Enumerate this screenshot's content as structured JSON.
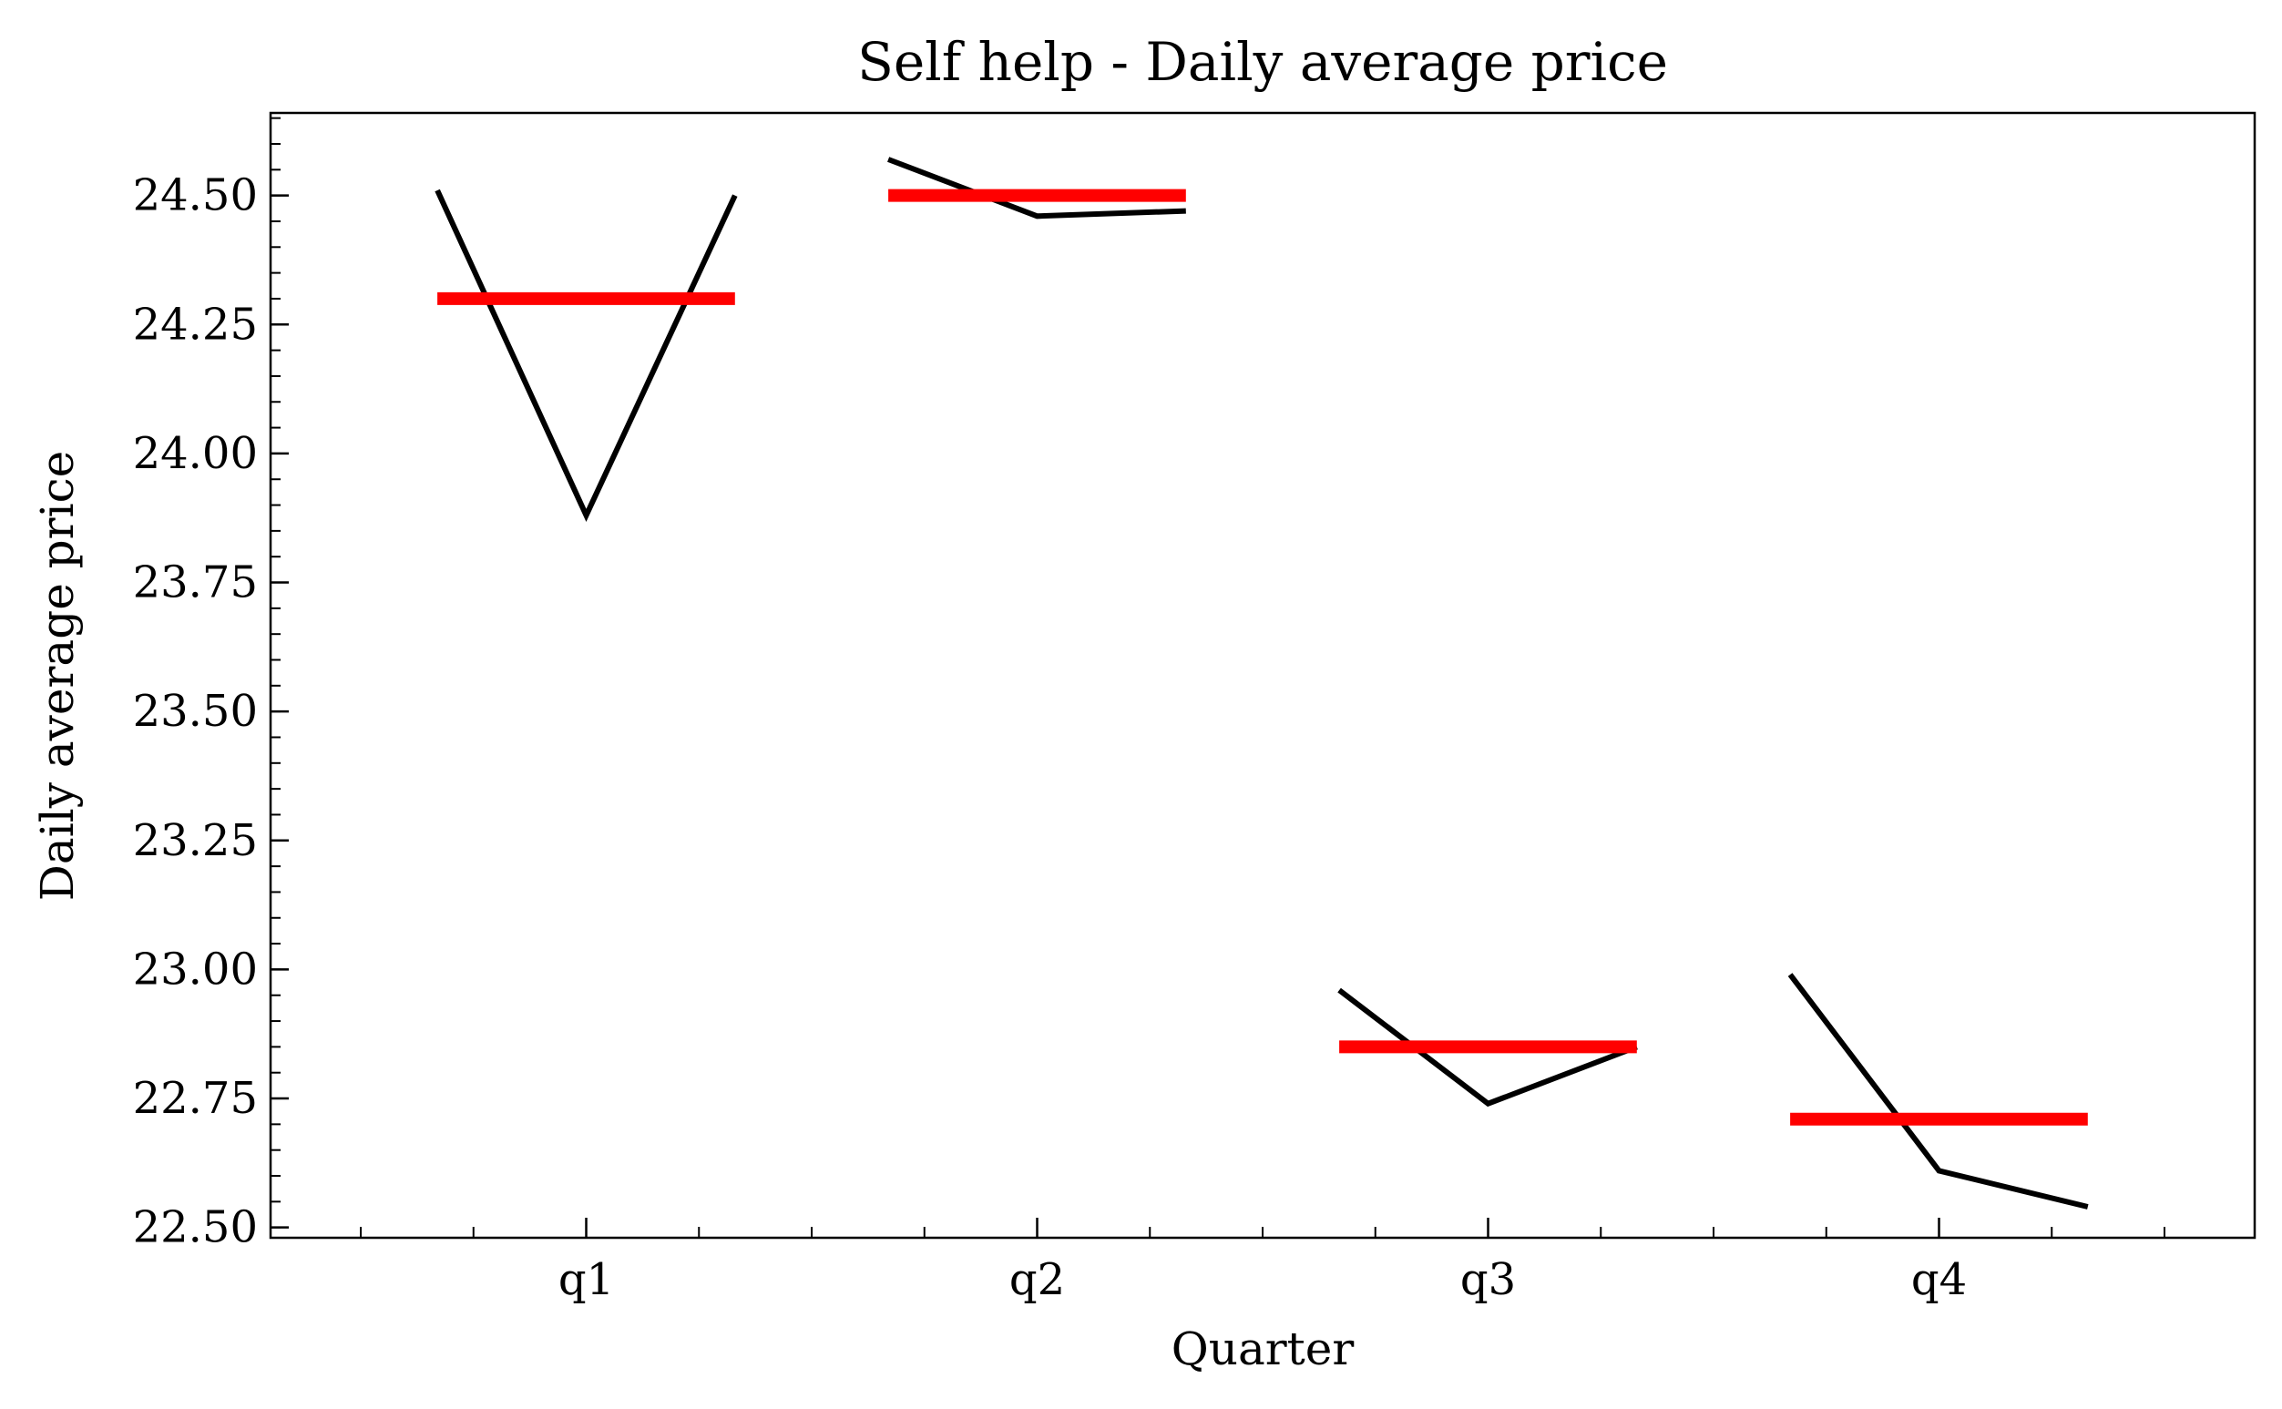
{
  "chart_data": {
    "type": "line",
    "title": "Self help - Daily average price",
    "xlabel": "Quarter",
    "ylabel": "Daily average price",
    "categories": [
      "q1",
      "q2",
      "q3",
      "q4"
    ],
    "ylim": [
      22.48,
      24.66
    ],
    "yticks": [
      "22.50",
      "22.75",
      "23.00",
      "23.25",
      "23.50",
      "23.75",
      "24.00",
      "24.25",
      "24.50"
    ],
    "grid": false,
    "legend": "none",
    "series": [
      {
        "kind": "monthly-line",
        "color": "#000000",
        "groups": [
          {
            "category": "q1",
            "values": [
              24.51,
              23.88,
              24.5
            ]
          },
          {
            "category": "q2",
            "values": [
              24.57,
              24.46,
              24.47
            ]
          },
          {
            "category": "q3",
            "values": [
              22.96,
              22.74,
              22.85
            ]
          },
          {
            "category": "q4",
            "values": [
              22.99,
              22.61,
              22.54
            ]
          }
        ]
      },
      {
        "kind": "quarter-mean",
        "color": "#ff0000",
        "groups": [
          {
            "category": "q1",
            "value": 24.3
          },
          {
            "category": "q2",
            "value": 24.5
          },
          {
            "category": "q3",
            "value": 22.85
          },
          {
            "category": "q4",
            "value": 22.71
          }
        ]
      }
    ]
  }
}
